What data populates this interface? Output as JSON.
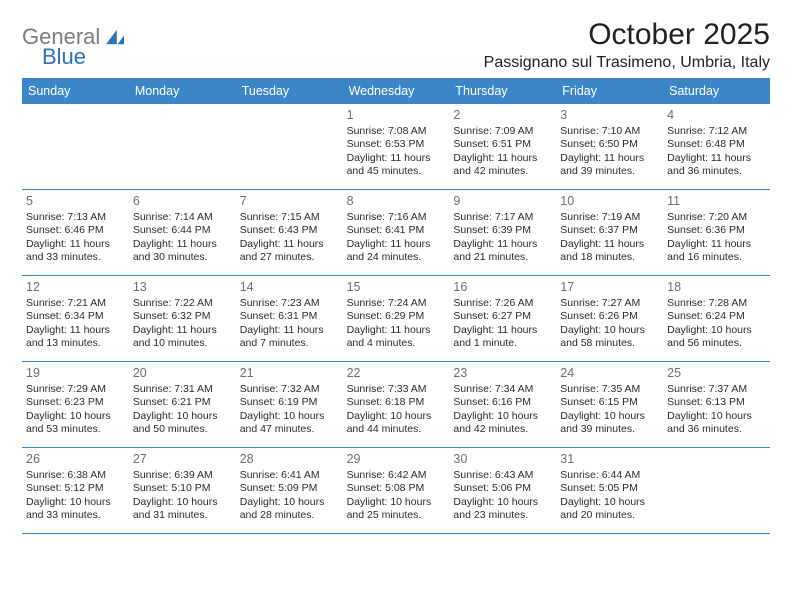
{
  "logo": {
    "text1": "General",
    "text2": "Blue",
    "color1": "#7d7d7d",
    "color2": "#2a74b8"
  },
  "title": "October 2025",
  "location": "Passignano sul Trasimeno, Umbria, Italy",
  "colors": {
    "header_bg": "#3b86c6",
    "header_text": "#ffffff",
    "border": "#3b86c6",
    "daynum": "#6f6f6f",
    "body_text": "#2b2b2b"
  },
  "day_headers": [
    "Sunday",
    "Monday",
    "Tuesday",
    "Wednesday",
    "Thursday",
    "Friday",
    "Saturday"
  ],
  "days": [
    {
      "n": "",
      "sunrise": "",
      "sunset": "",
      "daylight1": "",
      "daylight2": ""
    },
    {
      "n": "",
      "sunrise": "",
      "sunset": "",
      "daylight1": "",
      "daylight2": ""
    },
    {
      "n": "",
      "sunrise": "",
      "sunset": "",
      "daylight1": "",
      "daylight2": ""
    },
    {
      "n": "1",
      "sunrise": "Sunrise: 7:08 AM",
      "sunset": "Sunset: 6:53 PM",
      "daylight1": "Daylight: 11 hours",
      "daylight2": "and 45 minutes."
    },
    {
      "n": "2",
      "sunrise": "Sunrise: 7:09 AM",
      "sunset": "Sunset: 6:51 PM",
      "daylight1": "Daylight: 11 hours",
      "daylight2": "and 42 minutes."
    },
    {
      "n": "3",
      "sunrise": "Sunrise: 7:10 AM",
      "sunset": "Sunset: 6:50 PM",
      "daylight1": "Daylight: 11 hours",
      "daylight2": "and 39 minutes."
    },
    {
      "n": "4",
      "sunrise": "Sunrise: 7:12 AM",
      "sunset": "Sunset: 6:48 PM",
      "daylight1": "Daylight: 11 hours",
      "daylight2": "and 36 minutes."
    },
    {
      "n": "5",
      "sunrise": "Sunrise: 7:13 AM",
      "sunset": "Sunset: 6:46 PM",
      "daylight1": "Daylight: 11 hours",
      "daylight2": "and 33 minutes."
    },
    {
      "n": "6",
      "sunrise": "Sunrise: 7:14 AM",
      "sunset": "Sunset: 6:44 PM",
      "daylight1": "Daylight: 11 hours",
      "daylight2": "and 30 minutes."
    },
    {
      "n": "7",
      "sunrise": "Sunrise: 7:15 AM",
      "sunset": "Sunset: 6:43 PM",
      "daylight1": "Daylight: 11 hours",
      "daylight2": "and 27 minutes."
    },
    {
      "n": "8",
      "sunrise": "Sunrise: 7:16 AM",
      "sunset": "Sunset: 6:41 PM",
      "daylight1": "Daylight: 11 hours",
      "daylight2": "and 24 minutes."
    },
    {
      "n": "9",
      "sunrise": "Sunrise: 7:17 AM",
      "sunset": "Sunset: 6:39 PM",
      "daylight1": "Daylight: 11 hours",
      "daylight2": "and 21 minutes."
    },
    {
      "n": "10",
      "sunrise": "Sunrise: 7:19 AM",
      "sunset": "Sunset: 6:37 PM",
      "daylight1": "Daylight: 11 hours",
      "daylight2": "and 18 minutes."
    },
    {
      "n": "11",
      "sunrise": "Sunrise: 7:20 AM",
      "sunset": "Sunset: 6:36 PM",
      "daylight1": "Daylight: 11 hours",
      "daylight2": "and 16 minutes."
    },
    {
      "n": "12",
      "sunrise": "Sunrise: 7:21 AM",
      "sunset": "Sunset: 6:34 PM",
      "daylight1": "Daylight: 11 hours",
      "daylight2": "and 13 minutes."
    },
    {
      "n": "13",
      "sunrise": "Sunrise: 7:22 AM",
      "sunset": "Sunset: 6:32 PM",
      "daylight1": "Daylight: 11 hours",
      "daylight2": "and 10 minutes."
    },
    {
      "n": "14",
      "sunrise": "Sunrise: 7:23 AM",
      "sunset": "Sunset: 6:31 PM",
      "daylight1": "Daylight: 11 hours",
      "daylight2": "and 7 minutes."
    },
    {
      "n": "15",
      "sunrise": "Sunrise: 7:24 AM",
      "sunset": "Sunset: 6:29 PM",
      "daylight1": "Daylight: 11 hours",
      "daylight2": "and 4 minutes."
    },
    {
      "n": "16",
      "sunrise": "Sunrise: 7:26 AM",
      "sunset": "Sunset: 6:27 PM",
      "daylight1": "Daylight: 11 hours",
      "daylight2": "and 1 minute."
    },
    {
      "n": "17",
      "sunrise": "Sunrise: 7:27 AM",
      "sunset": "Sunset: 6:26 PM",
      "daylight1": "Daylight: 10 hours",
      "daylight2": "and 58 minutes."
    },
    {
      "n": "18",
      "sunrise": "Sunrise: 7:28 AM",
      "sunset": "Sunset: 6:24 PM",
      "daylight1": "Daylight: 10 hours",
      "daylight2": "and 56 minutes."
    },
    {
      "n": "19",
      "sunrise": "Sunrise: 7:29 AM",
      "sunset": "Sunset: 6:23 PM",
      "daylight1": "Daylight: 10 hours",
      "daylight2": "and 53 minutes."
    },
    {
      "n": "20",
      "sunrise": "Sunrise: 7:31 AM",
      "sunset": "Sunset: 6:21 PM",
      "daylight1": "Daylight: 10 hours",
      "daylight2": "and 50 minutes."
    },
    {
      "n": "21",
      "sunrise": "Sunrise: 7:32 AM",
      "sunset": "Sunset: 6:19 PM",
      "daylight1": "Daylight: 10 hours",
      "daylight2": "and 47 minutes."
    },
    {
      "n": "22",
      "sunrise": "Sunrise: 7:33 AM",
      "sunset": "Sunset: 6:18 PM",
      "daylight1": "Daylight: 10 hours",
      "daylight2": "and 44 minutes."
    },
    {
      "n": "23",
      "sunrise": "Sunrise: 7:34 AM",
      "sunset": "Sunset: 6:16 PM",
      "daylight1": "Daylight: 10 hours",
      "daylight2": "and 42 minutes."
    },
    {
      "n": "24",
      "sunrise": "Sunrise: 7:35 AM",
      "sunset": "Sunset: 6:15 PM",
      "daylight1": "Daylight: 10 hours",
      "daylight2": "and 39 minutes."
    },
    {
      "n": "25",
      "sunrise": "Sunrise: 7:37 AM",
      "sunset": "Sunset: 6:13 PM",
      "daylight1": "Daylight: 10 hours",
      "daylight2": "and 36 minutes."
    },
    {
      "n": "26",
      "sunrise": "Sunrise: 6:38 AM",
      "sunset": "Sunset: 5:12 PM",
      "daylight1": "Daylight: 10 hours",
      "daylight2": "and 33 minutes."
    },
    {
      "n": "27",
      "sunrise": "Sunrise: 6:39 AM",
      "sunset": "Sunset: 5:10 PM",
      "daylight1": "Daylight: 10 hours",
      "daylight2": "and 31 minutes."
    },
    {
      "n": "28",
      "sunrise": "Sunrise: 6:41 AM",
      "sunset": "Sunset: 5:09 PM",
      "daylight1": "Daylight: 10 hours",
      "daylight2": "and 28 minutes."
    },
    {
      "n": "29",
      "sunrise": "Sunrise: 6:42 AM",
      "sunset": "Sunset: 5:08 PM",
      "daylight1": "Daylight: 10 hours",
      "daylight2": "and 25 minutes."
    },
    {
      "n": "30",
      "sunrise": "Sunrise: 6:43 AM",
      "sunset": "Sunset: 5:06 PM",
      "daylight1": "Daylight: 10 hours",
      "daylight2": "and 23 minutes."
    },
    {
      "n": "31",
      "sunrise": "Sunrise: 6:44 AM",
      "sunset": "Sunset: 5:05 PM",
      "daylight1": "Daylight: 10 hours",
      "daylight2": "and 20 minutes."
    },
    {
      "n": "",
      "sunrise": "",
      "sunset": "",
      "daylight1": "",
      "daylight2": ""
    }
  ]
}
